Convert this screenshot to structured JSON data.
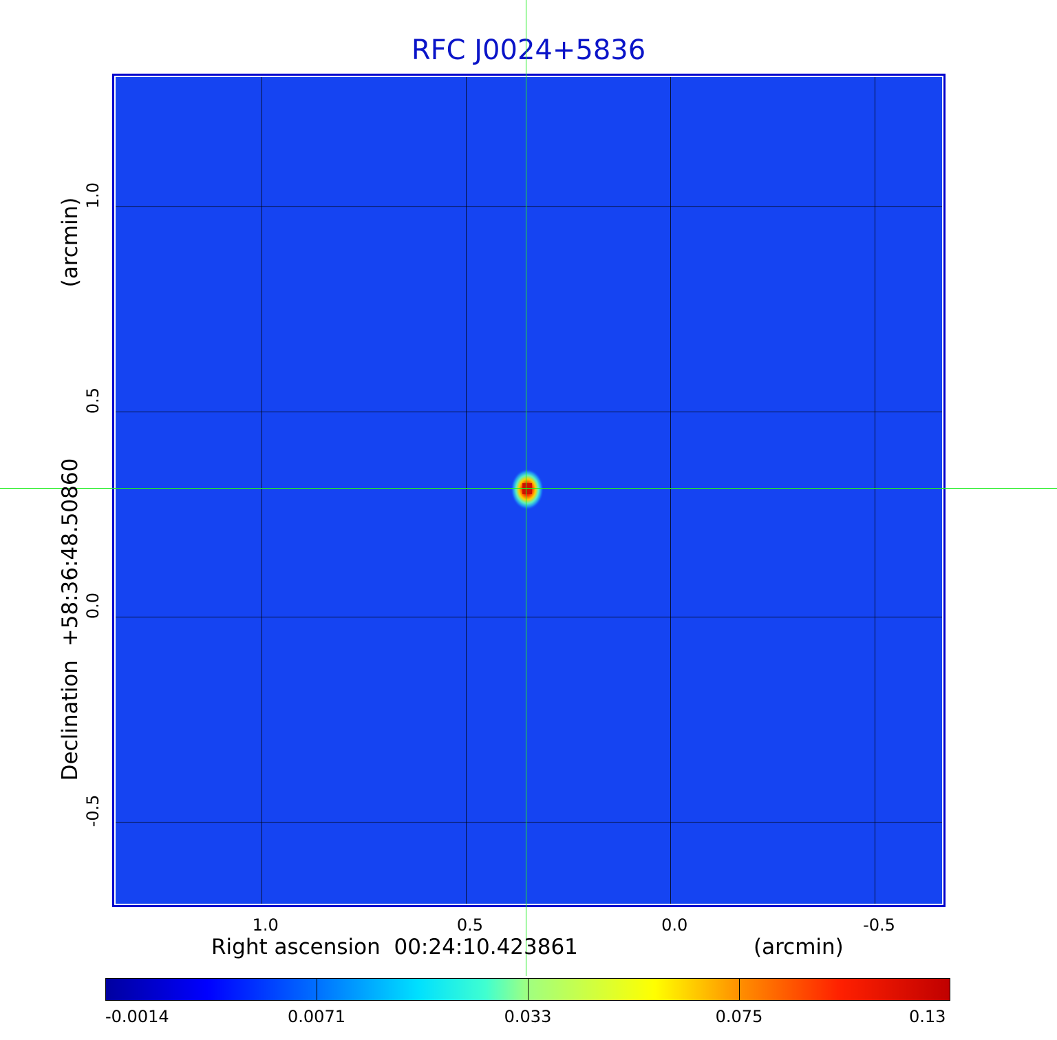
{
  "chart_data": {
    "type": "heatmap",
    "title": "RFC J0024+5836",
    "xlabel": "Right ascension  00:24:10.423861",
    "xunit": "(arcmin)",
    "ylabel": "Declination  +58:36:48.50860",
    "yunit": "(arcmin)",
    "x_ticks": [
      "1.0",
      "0.5",
      "0.0",
      "-0.5"
    ],
    "x_tick_values": [
      1.0,
      0.5,
      0.0,
      -0.5
    ],
    "y_ticks": [
      "1.0",
      "0.5",
      "0.0",
      "-0.5"
    ],
    "y_tick_values": [
      1.0,
      0.5,
      0.0,
      -0.5
    ],
    "xlim": [
      1.356,
      -0.664
    ],
    "ylim": [
      -0.7,
      1.315
    ],
    "grid": true,
    "crosshair": {
      "x": 0.35,
      "y": 0.31
    },
    "source_peak": {
      "x": 0.35,
      "y": 0.31,
      "value": 0.13
    },
    "colorbar": {
      "labels": [
        "-0.0014",
        "0.0071",
        "0.033",
        "0.075",
        "0.13"
      ],
      "values": [
        -0.0014,
        0.0071,
        0.033,
        0.075,
        0.13
      ],
      "colormap": "jet"
    }
  },
  "colors": {
    "title": "#0a14c8",
    "frame": "#0000cc",
    "background": "#1544f2",
    "crosshair": "#22ee22"
  }
}
